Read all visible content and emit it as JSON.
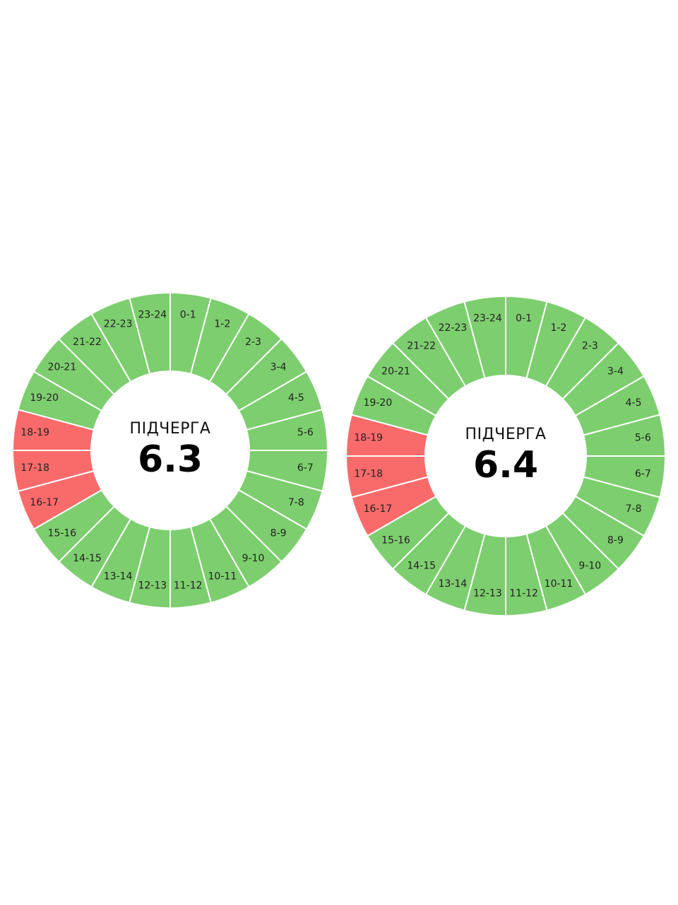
{
  "dials": [
    {
      "caption": "ПІДЧЕРГА",
      "queue": "6.3",
      "segments": [
        {
          "label": "0-1",
          "color": "#7dce6e"
        },
        {
          "label": "1-2",
          "color": "#7dce6e"
        },
        {
          "label": "2-3",
          "color": "#7dce6e"
        },
        {
          "label": "3-4",
          "color": "#7dce6e"
        },
        {
          "label": "4-5",
          "color": "#7dce6e"
        },
        {
          "label": "5-6",
          "color": "#7dce6e"
        },
        {
          "label": "6-7",
          "color": "#7dce6e"
        },
        {
          "label": "7-8",
          "color": "#7dce6e"
        },
        {
          "label": "8-9",
          "color": "#7dce6e"
        },
        {
          "label": "9-10",
          "color": "#7dce6e"
        },
        {
          "label": "10-11",
          "color": "#7dce6e"
        },
        {
          "label": "11-12",
          "color": "#7dce6e"
        },
        {
          "label": "12-13",
          "color": "#7dce6e"
        },
        {
          "label": "13-14",
          "color": "#7dce6e"
        },
        {
          "label": "14-15",
          "color": "#7dce6e"
        },
        {
          "label": "15-16",
          "color": "#7dce6e"
        },
        {
          "label": "16-17",
          "color": "#f96b6b"
        },
        {
          "label": "17-18",
          "color": "#f96b6b"
        },
        {
          "label": "18-19",
          "color": "#f96b6b"
        },
        {
          "label": "19-20",
          "color": "#7dce6e"
        },
        {
          "label": "20-21",
          "color": "#7dce6e"
        },
        {
          "label": "21-22",
          "color": "#7dce6e"
        },
        {
          "label": "22-23",
          "color": "#7dce6e"
        },
        {
          "label": "23-24",
          "color": "#7dce6e"
        }
      ]
    },
    {
      "caption": "ПІДЧЕРГА",
      "queue": "6.4",
      "segments": [
        {
          "label": "0-1",
          "color": "#7dce6e"
        },
        {
          "label": "1-2",
          "color": "#7dce6e"
        },
        {
          "label": "2-3",
          "color": "#7dce6e"
        },
        {
          "label": "3-4",
          "color": "#7dce6e"
        },
        {
          "label": "4-5",
          "color": "#7dce6e"
        },
        {
          "label": "5-6",
          "color": "#7dce6e"
        },
        {
          "label": "6-7",
          "color": "#7dce6e"
        },
        {
          "label": "7-8",
          "color": "#7dce6e"
        },
        {
          "label": "8-9",
          "color": "#7dce6e"
        },
        {
          "label": "9-10",
          "color": "#7dce6e"
        },
        {
          "label": "10-11",
          "color": "#7dce6e"
        },
        {
          "label": "11-12",
          "color": "#7dce6e"
        },
        {
          "label": "12-13",
          "color": "#7dce6e"
        },
        {
          "label": "13-14",
          "color": "#7dce6e"
        },
        {
          "label": "14-15",
          "color": "#7dce6e"
        },
        {
          "label": "15-16",
          "color": "#7dce6e"
        },
        {
          "label": "16-17",
          "color": "#f96b6b"
        },
        {
          "label": "17-18",
          "color": "#f96b6b"
        },
        {
          "label": "18-19",
          "color": "#f96b6b"
        },
        {
          "label": "19-20",
          "color": "#7dce6e"
        },
        {
          "label": "20-21",
          "color": "#7dce6e"
        },
        {
          "label": "21-22",
          "color": "#7dce6e"
        },
        {
          "label": "22-23",
          "color": "#7dce6e"
        },
        {
          "label": "23-24",
          "color": "#7dce6e"
        }
      ]
    }
  ]
}
